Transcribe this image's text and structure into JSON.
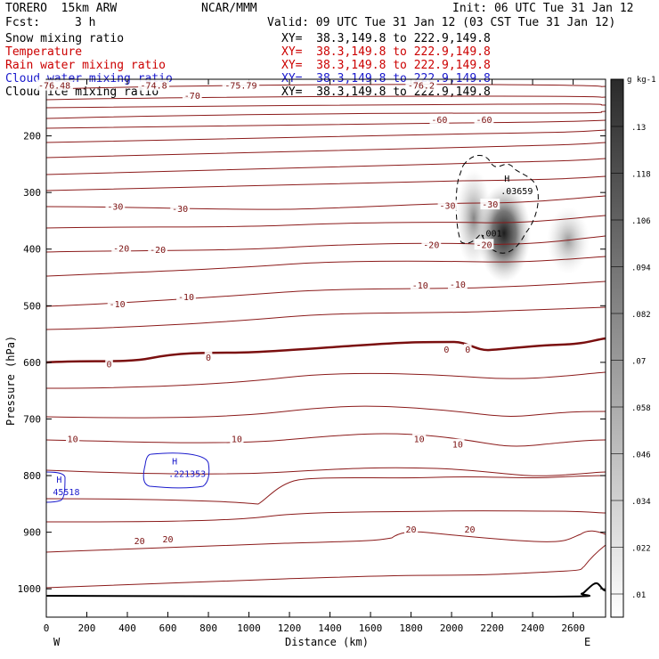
{
  "header": {
    "model": "TORERO  15km ARW",
    "org": "NCAR/MMM",
    "init": "Init: 06 UTC Tue 31 Jan 12",
    "fcst_label": "Fcst:",
    "fcst_value": "3 h",
    "valid": "Valid: 09 UTC Tue 31 Jan 12 (03 CST Tue 31 Jan 12)"
  },
  "fields": [
    {
      "name": "Snow mixing ratio",
      "xy": "XY=  38.3,149.8 to 222.9,149.8",
      "color": "#000000"
    },
    {
      "name": "Temperature",
      "xy": "XY=  38.3,149.8 to 222.9,149.8",
      "color": "#cc0000"
    },
    {
      "name": "Rain water mixing ratio",
      "xy": "XY=  38.3,149.8 to 222.9,149.8",
      "color": "#cc0000"
    },
    {
      "name": "Cloud water mixing ratio",
      "xy": "XY=  38.3,149.8 to 222.9,149.8",
      "color": "#1a1acc"
    },
    {
      "name": "Cloud ice mixing ratio",
      "xy": "XY=  38.3,149.8 to 222.9,149.8",
      "color": "#000000"
    }
  ],
  "chart_data": {
    "type": "cross-section contour",
    "xlabel": "Distance (km)",
    "ylabel": "Pressure (hPa)",
    "xlim": [
      0,
      2760
    ],
    "ylim": [
      1050,
      100
    ],
    "x_ticks": [
      0,
      200,
      400,
      600,
      800,
      1000,
      1200,
      1400,
      1600,
      1800,
      2000,
      2200,
      2400,
      2600
    ],
    "y_ticks": [
      200,
      300,
      400,
      500,
      600,
      700,
      800,
      900,
      1000
    ],
    "x_end_labels": {
      "west": "W",
      "east": "E"
    },
    "colorbar": {
      "units": "g kg-1",
      "ticks": [
        ".13",
        ".118",
        ".106",
        ".094",
        ".082",
        ".07",
        ".058",
        ".046",
        ".034",
        ".022",
        ".01"
      ]
    },
    "temperature_labels": [
      {
        "text": "-70",
        "x": 720,
        "p": 130
      },
      {
        "text": "-75.79",
        "x": 960,
        "p": 112
      },
      {
        "text": "-76.48",
        "x": 40,
        "p": 112
      },
      {
        "text": "-74.8",
        "x": 530,
        "p": 112
      },
      {
        "text": "-76.2",
        "x": 1850,
        "p": 112
      },
      {
        "text": "-60",
        "x": 1940,
        "p": 172
      },
      {
        "text": "-60",
        "x": 2160,
        "p": 172
      },
      {
        "text": "-30",
        "x": 340,
        "p": 326
      },
      {
        "text": "-30",
        "x": 660,
        "p": 330
      },
      {
        "text": "-30",
        "x": 1980,
        "p": 324
      },
      {
        "text": "-30",
        "x": 2190,
        "p": 322
      },
      {
        "text": "-20",
        "x": 370,
        "p": 400
      },
      {
        "text": "-20",
        "x": 550,
        "p": 402
      },
      {
        "text": "-20",
        "x": 1900,
        "p": 393
      },
      {
        "text": "-20",
        "x": 2160,
        "p": 393
      },
      {
        "text": "-10",
        "x": 350,
        "p": 498
      },
      {
        "text": "-10",
        "x": 690,
        "p": 485
      },
      {
        "text": "-10",
        "x": 1845,
        "p": 465
      },
      {
        "text": "-10",
        "x": 2030,
        "p": 463
      },
      {
        "text": "0",
        "x": 310,
        "p": 604
      },
      {
        "text": "0",
        "x": 800,
        "p": 592
      },
      {
        "text": "0",
        "x": 1975,
        "p": 578
      },
      {
        "text": "0",
        "x": 2080,
        "p": 578
      },
      {
        "text": "10",
        "x": 130,
        "p": 736
      },
      {
        "text": "10",
        "x": 940,
        "p": 736
      },
      {
        "text": "10",
        "x": 1840,
        "p": 736
      },
      {
        "text": "10",
        "x": 2030,
        "p": 746
      },
      {
        "text": "20",
        "x": 460,
        "p": 916
      },
      {
        "text": "20",
        "x": 600,
        "p": 913
      },
      {
        "text": "20",
        "x": 1800,
        "p": 896
      },
      {
        "text": "20",
        "x": 2090,
        "p": 896
      }
    ],
    "extrema_labels": [
      {
        "mark": "H",
        "value": ".221353",
        "x": 620,
        "p": 790,
        "color": "#1a1acc"
      },
      {
        "mark": "H",
        "value": ".03659",
        "x": 2260,
        "p": 290,
        "color": "#000000"
      },
      {
        "mark": "H",
        "value": "45518",
        "x": 50,
        "p": 822,
        "color": "#1a1acc"
      },
      {
        "mark": "",
        "value": ".001",
        "x": 2160,
        "p": 365,
        "color": "#000000"
      }
    ]
  }
}
